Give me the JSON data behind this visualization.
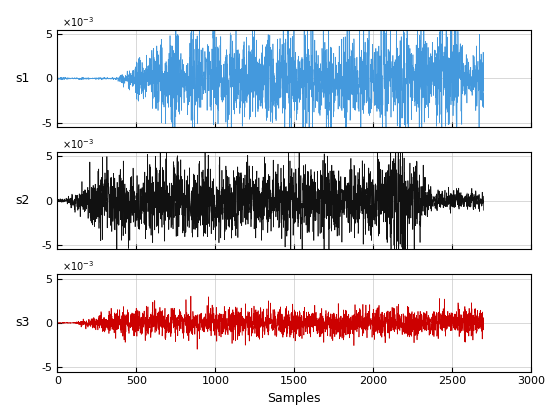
{
  "n_samples": 2700,
  "xlim": [
    0,
    3000
  ],
  "ylim_s1": [
    -0.0055,
    0.0055
  ],
  "ylim_s2": [
    -0.0055,
    0.0055
  ],
  "ylim_s3": [
    -0.0055,
    0.0055
  ],
  "yticks": [
    -0.005,
    0,
    0.005
  ],
  "xticks": [
    0,
    500,
    1000,
    1500,
    2000,
    2500,
    3000
  ],
  "color_s1": "#4499dd",
  "color_s2": "#111111",
  "color_s3": "#cc0000",
  "ylabels": [
    "s1",
    "s2",
    "s3"
  ],
  "xlabel": "Samples",
  "linewidth": 0.5,
  "seed_s1": 7,
  "seed_s2": 13,
  "seed_s3": 99
}
